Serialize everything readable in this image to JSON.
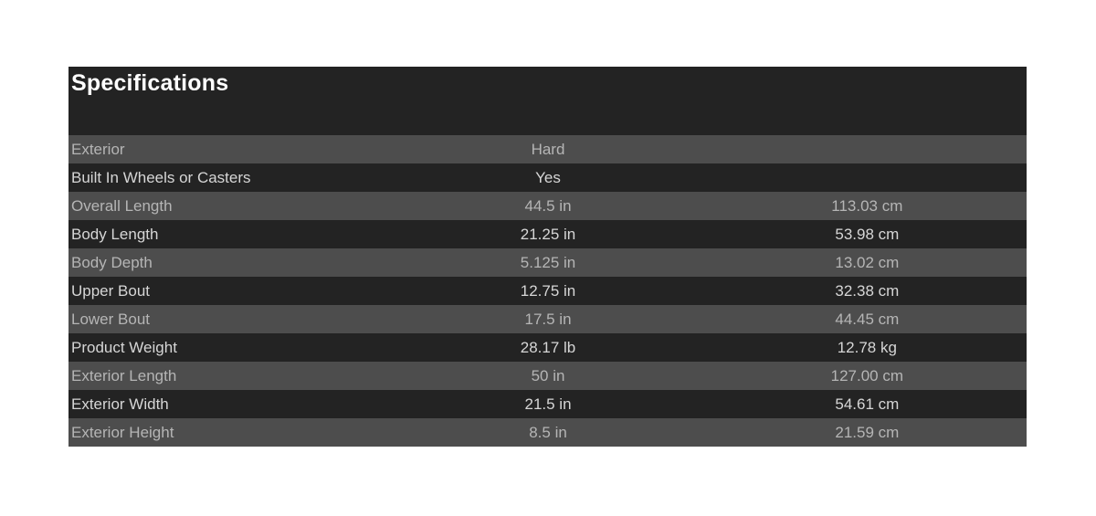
{
  "specifications": {
    "title": "Specifications",
    "columns": [
      "label",
      "imperial",
      "metric"
    ],
    "rows": [
      {
        "label": "Exterior",
        "imperial": "Hard",
        "metric": ""
      },
      {
        "label": "Built In Wheels or Casters",
        "imperial": "Yes",
        "metric": ""
      },
      {
        "label": "Overall Length",
        "imperial": "44.5 in",
        "metric": "113.03 cm"
      },
      {
        "label": "Body Length",
        "imperial": "21.25 in",
        "metric": "53.98 cm"
      },
      {
        "label": "Body Depth",
        "imperial": "5.125 in",
        "metric": "13.02 cm"
      },
      {
        "label": "Upper Bout",
        "imperial": "12.75 in",
        "metric": "32.38 cm"
      },
      {
        "label": "Lower Bout",
        "imperial": "17.5 in",
        "metric": "44.45 cm"
      },
      {
        "label": "Product Weight",
        "imperial": "28.17 lb",
        "metric": "12.78 kg"
      },
      {
        "label": "Exterior Length",
        "imperial": "50 in",
        "metric": "127.00 cm"
      },
      {
        "label": "Exterior Width",
        "imperial": "21.5 in",
        "metric": "54.61 cm"
      },
      {
        "label": "Exterior Height",
        "imperial": "8.5 in",
        "metric": "21.59 cm"
      }
    ],
    "colors": {
      "page_background": "#ffffff",
      "header_background": "#232323",
      "row_dark_background": "#232323",
      "row_shaded_background": "#4d4d4d",
      "title_text": "#ffffff",
      "row_shaded_text": "#b5b5b5",
      "row_dark_text": "#d6d6d6"
    }
  }
}
